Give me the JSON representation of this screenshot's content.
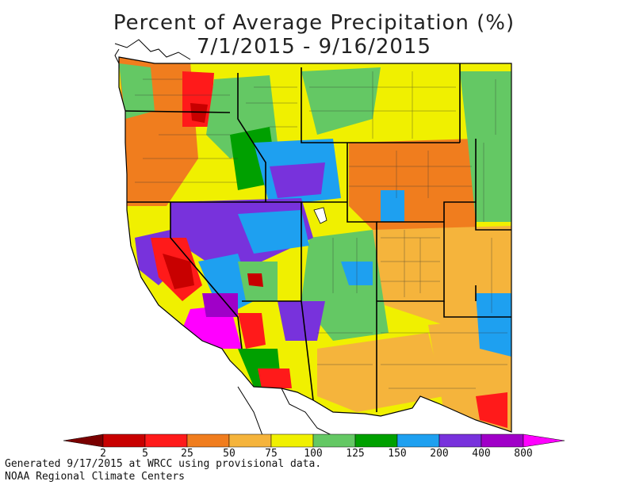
{
  "title": "Percent of Average Precipitation (%)",
  "date_range": "7/1/2015 - 9/16/2015",
  "legend": {
    "ticks": [
      "2",
      "5",
      "25",
      "50",
      "75",
      "100",
      "125",
      "150",
      "200",
      "400",
      "800"
    ],
    "colors": [
      "#7a0000",
      "#c80000",
      "#ff1a1a",
      "#f07d1e",
      "#f5b43c",
      "#f0f000",
      "#64c864",
      "#00a000",
      "#1ea0f0",
      "#7832dc",
      "#a000c8",
      "#ff00ff"
    ]
  },
  "footer": {
    "line1": "Generated 9/17/2015 at WRCC using provisional data.",
    "line2": "NOAA Regional Climate Centers"
  }
}
